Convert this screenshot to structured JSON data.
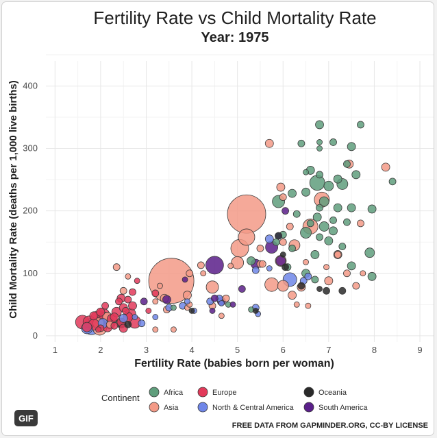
{
  "badge": {
    "label": "GIF"
  },
  "chart_data": {
    "type": "scatter",
    "title": "Fertility Rate vs Child Mortality Rate",
    "subtitle": "Year: 1975",
    "xlabel": "Fertility Rate (babies born per woman)",
    "ylabel": "Child Mortality Rate (deaths per 1,000 live births)",
    "xlim": [
      0.8,
      9.3
    ],
    "ylim": [
      -10,
      440
    ],
    "x_ticks": [
      1,
      2,
      3,
      4,
      5,
      6,
      7,
      8,
      9
    ],
    "y_ticks": [
      0,
      100,
      200,
      300,
      400
    ],
    "grid": true,
    "legend": {
      "title": "Continent",
      "placement": "bottom"
    },
    "caption": "FREE DATA FROM GAPMINDER.ORG, CC-BY LICENSE",
    "colors": {
      "Africa": "#5f9e7c",
      "Asia": "#f39a87",
      "Europe": "#e23a5a",
      "North & Central America": "#6f86e8",
      "Oceania": "#2a2a2a",
      "South America": "#5a1f8a"
    },
    "series": [
      {
        "name": "Africa",
        "points": [
          [
            6.8,
            338,
            6
          ],
          [
            7.7,
            338,
            5
          ],
          [
            7.1,
            310,
            5
          ],
          [
            6.8,
            310,
            4
          ],
          [
            6.4,
            308,
            5
          ],
          [
            6.8,
            300,
            4
          ],
          [
            7.5,
            303,
            6
          ],
          [
            7.4,
            275,
            5
          ],
          [
            6.8,
            258,
            5
          ],
          [
            6.6,
            265,
            6
          ],
          [
            6.5,
            262,
            4
          ],
          [
            7.6,
            258,
            6
          ],
          [
            7.2,
            251,
            6
          ],
          [
            8.4,
            247,
            5
          ],
          [
            6.75,
            245,
            11
          ],
          [
            7.0,
            240,
            7
          ],
          [
            7.3,
            243,
            8
          ],
          [
            6.5,
            230,
            6
          ],
          [
            6.2,
            228,
            6
          ],
          [
            5.9,
            215,
            9
          ],
          [
            6.9,
            215,
            7
          ],
          [
            6.8,
            205,
            5
          ],
          [
            7.2,
            205,
            6
          ],
          [
            7.5,
            205,
            6
          ],
          [
            7.95,
            203,
            6
          ],
          [
            6.3,
            195,
            5
          ],
          [
            6.75,
            190,
            6
          ],
          [
            7.1,
            185,
            5
          ],
          [
            7.4,
            182,
            5
          ],
          [
            6.5,
            165,
            8
          ],
          [
            6.6,
            180,
            5
          ],
          [
            6.9,
            175,
            7
          ],
          [
            7.1,
            168,
            6
          ],
          [
            6.0,
            162,
            5
          ],
          [
            6.8,
            158,
            5
          ],
          [
            7.0,
            152,
            6
          ],
          [
            5.85,
            150,
            5
          ],
          [
            7.3,
            143,
            5
          ],
          [
            6.2,
            140,
            5
          ],
          [
            7.9,
            133,
            7
          ],
          [
            6.7,
            130,
            6
          ],
          [
            5.3,
            120,
            6
          ],
          [
            7.5,
            112,
            6
          ],
          [
            6.1,
            110,
            5
          ],
          [
            6.5,
            100,
            6
          ],
          [
            7.95,
            95,
            6
          ],
          [
            6.7,
            90,
            5
          ],
          [
            4.8,
            50,
            4
          ],
          [
            3.6,
            45,
            4
          ],
          [
            5.3,
            42,
            4
          ]
        ]
      },
      {
        "name": "Asia",
        "points": [
          [
            5.2,
            195,
            28
          ],
          [
            3.55,
            88,
            33
          ],
          [
            5.2,
            158,
            12
          ],
          [
            5.05,
            140,
            13
          ],
          [
            5.0,
            117,
            9
          ],
          [
            5.7,
            308,
            6
          ],
          [
            8.25,
            270,
            6
          ],
          [
            5.95,
            238,
            6
          ],
          [
            7.45,
            275,
            6
          ],
          [
            6.85,
            218,
            11
          ],
          [
            6.0,
            222,
            5
          ],
          [
            6.6,
            175,
            11
          ],
          [
            7.7,
            180,
            5
          ],
          [
            6.0,
            150,
            5
          ],
          [
            6.25,
            145,
            8
          ],
          [
            5.5,
            140,
            5
          ],
          [
            6.15,
            175,
            5
          ],
          [
            5.5,
            115,
            5
          ],
          [
            5.95,
            120,
            8
          ],
          [
            7.2,
            130,
            6
          ],
          [
            7.2,
            130,
            5
          ],
          [
            4.2,
            113,
            5
          ],
          [
            6.0,
            80,
            8
          ],
          [
            5.75,
            82,
            10
          ],
          [
            6.4,
            78,
            6
          ],
          [
            6.2,
            65,
            6
          ],
          [
            7.0,
            88,
            6
          ],
          [
            7.6,
            80,
            5
          ],
          [
            7.4,
            100,
            5
          ],
          [
            5.55,
            115,
            5
          ],
          [
            6.3,
            50,
            4
          ],
          [
            6.55,
            48,
            4
          ],
          [
            4.45,
            78,
            9
          ],
          [
            4.45,
            48,
            5
          ],
          [
            4.75,
            60,
            5
          ],
          [
            3.9,
            65,
            6
          ],
          [
            3.4,
            60,
            6
          ],
          [
            3.45,
            42,
            5
          ],
          [
            3.95,
            100,
            5
          ],
          [
            3.3,
            80,
            4
          ],
          [
            3.9,
            45,
            4
          ],
          [
            4.65,
            32,
            4
          ],
          [
            3.2,
            55,
            4
          ],
          [
            2.35,
            110,
            5
          ],
          [
            2.6,
            95,
            4
          ],
          [
            2.5,
            72,
            5
          ],
          [
            2.15,
            30,
            7
          ],
          [
            1.95,
            20,
            8
          ],
          [
            1.98,
            12,
            10
          ],
          [
            2.2,
            18,
            5
          ],
          [
            3.2,
            10,
            4
          ],
          [
            3.6,
            10,
            4
          ],
          [
            3.95,
            50,
            4
          ],
          [
            4.85,
            112,
            4
          ],
          [
            7.75,
            100,
            4
          ],
          [
            4.25,
            100,
            4
          ],
          [
            6.95,
            110,
            4
          ],
          [
            6.5,
            118,
            4
          ]
        ]
      },
      {
        "name": "Europe",
        "points": [
          [
            1.6,
            22,
            10
          ],
          [
            1.75,
            22,
            9
          ],
          [
            1.95,
            28,
            11
          ],
          [
            2.05,
            33,
            10
          ],
          [
            1.7,
            14,
            7
          ],
          [
            1.85,
            18,
            8
          ],
          [
            2.1,
            28,
            9
          ],
          [
            2.2,
            20,
            8
          ],
          [
            2.25,
            27,
            7
          ],
          [
            2.35,
            38,
            7
          ],
          [
            2.5,
            45,
            6
          ],
          [
            2.45,
            60,
            6
          ],
          [
            2.65,
            35,
            8
          ],
          [
            2.7,
            48,
            6
          ],
          [
            2.6,
            58,
            5
          ],
          [
            2.75,
            22,
            9
          ],
          [
            2.45,
            22,
            6
          ],
          [
            2.15,
            14,
            7
          ],
          [
            2.3,
            16,
            5
          ],
          [
            2.5,
            12,
            6
          ],
          [
            2.7,
            70,
            5
          ],
          [
            2.8,
            88,
            4
          ],
          [
            1.85,
            32,
            6
          ],
          [
            2.0,
            38,
            6
          ],
          [
            2.1,
            48,
            5
          ],
          [
            2.55,
            40,
            5
          ],
          [
            3.2,
            68,
            5
          ],
          [
            2.0,
            12,
            5
          ],
          [
            3.05,
            40,
            4
          ],
          [
            1.95,
            10,
            4
          ],
          [
            2.4,
            55,
            5
          ],
          [
            2.6,
            30,
            7
          ],
          [
            2.3,
            30,
            6
          ]
        ]
      },
      {
        "name": "North & Central America",
        "points": [
          [
            1.8,
            15,
            12
          ],
          [
            1.7,
            12,
            8
          ],
          [
            2.05,
            20,
            7
          ],
          [
            2.5,
            28,
            6
          ],
          [
            2.9,
            20,
            5
          ],
          [
            3.5,
            45,
            5
          ],
          [
            3.8,
            48,
            5
          ],
          [
            4.4,
            55,
            5
          ],
          [
            4.6,
            60,
            5
          ],
          [
            5.4,
            45,
            5
          ],
          [
            5.4,
            105,
            5
          ],
          [
            5.7,
            155,
            6
          ],
          [
            6.15,
            90,
            10
          ],
          [
            6.45,
            88,
            5
          ],
          [
            6.55,
            95,
            5
          ],
          [
            3.2,
            30,
            4
          ],
          [
            3.9,
            55,
            4
          ],
          [
            4.65,
            52,
            4
          ],
          [
            5.9,
            160,
            5
          ],
          [
            5.7,
            108,
            4
          ],
          [
            5.45,
            35,
            4
          ],
          [
            2.75,
            30,
            4
          ],
          [
            4.05,
            40,
            4
          ]
        ]
      },
      {
        "name": "Oceania",
        "points": [
          [
            2.45,
            20,
            7
          ],
          [
            2.6,
            18,
            5
          ],
          [
            6.95,
            72,
            5
          ],
          [
            7.3,
            72,
            5
          ],
          [
            6.4,
            80,
            5
          ],
          [
            5.9,
            160,
            5
          ],
          [
            6.0,
            130,
            4
          ],
          [
            6.8,
            75,
            4
          ],
          [
            5.4,
            40,
            4
          ],
          [
            6.05,
            110,
            5
          ],
          [
            4.0,
            40,
            4
          ]
        ]
      },
      {
        "name": "South America",
        "points": [
          [
            4.5,
            113,
            13
          ],
          [
            5.4,
            115,
            7
          ],
          [
            5.75,
            142,
            9
          ],
          [
            4.65,
            55,
            6
          ],
          [
            5.1,
            75,
            5
          ],
          [
            4.5,
            60,
            5
          ],
          [
            5.95,
            120,
            7
          ],
          [
            6.05,
            200,
            5
          ],
          [
            4.9,
            50,
            4
          ],
          [
            3.45,
            58,
            6
          ],
          [
            2.95,
            55,
            5
          ],
          [
            4.45,
            40,
            4
          ],
          [
            3.85,
            90,
            4
          ]
        ]
      }
    ]
  }
}
